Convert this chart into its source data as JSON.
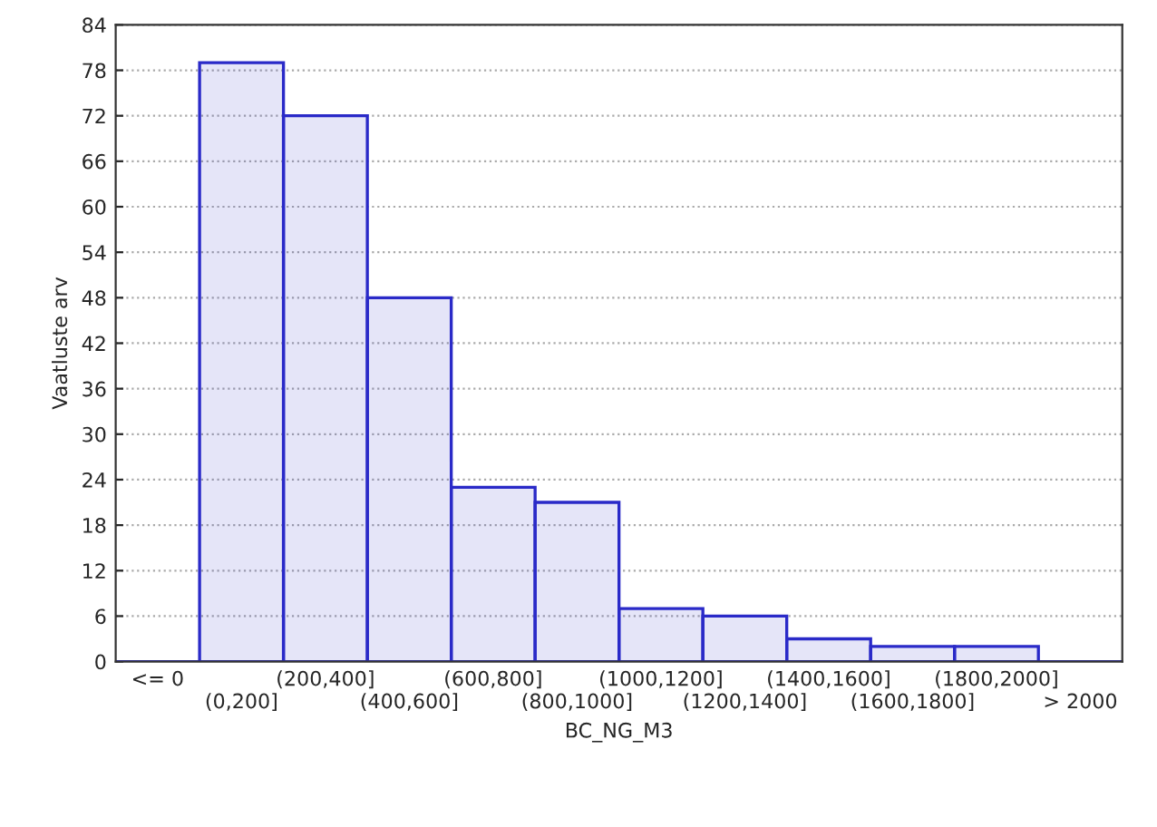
{
  "chart_data": {
    "type": "bar",
    "xlabel": "BC_NG_M3",
    "ylabel": "Vaatluste arv",
    "categories": [
      "<= 0",
      "(0,200]",
      "(200,400]",
      "(400,600]",
      "(600,800]",
      "(800,1000]",
      "(1000,1200]",
      "(1200,1400]",
      "(1400,1600]",
      "(1600,1800]",
      "(1800,2000]",
      "> 2000"
    ],
    "values": [
      0,
      79,
      72,
      48,
      23,
      21,
      7,
      6,
      3,
      2,
      2,
      0
    ],
    "color": "#2a2ac8",
    "ylim": [
      0,
      84
    ],
    "yticks": [
      0,
      6,
      12,
      18,
      24,
      30,
      36,
      42,
      48,
      54,
      60,
      66,
      72,
      78,
      84
    ],
    "grid": "y"
  }
}
